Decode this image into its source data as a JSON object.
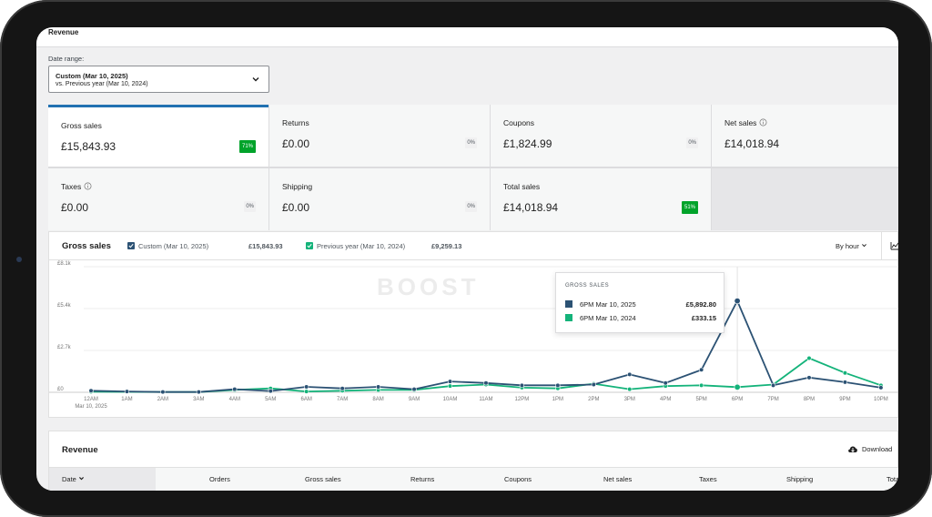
{
  "header": {
    "title": "Revenue"
  },
  "date_range": {
    "label": "Date range:",
    "primary": "Custom (Mar 10, 2025)",
    "secondary": "vs. Previous year (Mar 10, 2024)"
  },
  "tiles": [
    {
      "label": "Gross sales",
      "value": "£15,843.93",
      "delta": "71%",
      "trend": "up",
      "info": false
    },
    {
      "label": "Returns",
      "value": "£0.00",
      "delta": "0%",
      "trend": "flat",
      "info": false
    },
    {
      "label": "Coupons",
      "value": "£1,824.99",
      "delta": "0%",
      "trend": "flat",
      "info": false
    },
    {
      "label": "Net sales",
      "value": "£14,018.94",
      "delta": "",
      "trend": "none",
      "info": true
    },
    {
      "label": "Taxes",
      "value": "£0.00",
      "delta": "0%",
      "trend": "flat",
      "info": true
    },
    {
      "label": "Shipping",
      "value": "£0.00",
      "delta": "0%",
      "trend": "flat",
      "info": false
    },
    {
      "label": "Total sales",
      "value": "£14,018.94",
      "delta": "51%",
      "trend": "up",
      "info": false
    }
  ],
  "chart": {
    "title": "Gross sales",
    "legend": [
      {
        "label": "Custom (Mar 10, 2025)",
        "total": "£15,843.93",
        "color": "#2c5274"
      },
      {
        "label": "Previous year (Mar 10, 2024)",
        "total": "£9,259.13",
        "color": "#14b37a"
      }
    ],
    "interval": "By hour",
    "watermark": "BOOST",
    "tooltip": {
      "title": "Gross sales",
      "rows": [
        {
          "label": "6PM Mar 10, 2025",
          "value": "£5,892.80",
          "color": "#2c5274"
        },
        {
          "label": "6PM Mar 10, 2024",
          "value": "£333.15",
          "color": "#14b37a"
        }
      ]
    }
  },
  "chart_data": {
    "type": "line",
    "x": [
      "12AM",
      "1AM",
      "2AM",
      "3AM",
      "4AM",
      "5AM",
      "6AM",
      "7AM",
      "8AM",
      "9AM",
      "10AM",
      "11AM",
      "12PM",
      "1PM",
      "2PM",
      "3PM",
      "4PM",
      "5PM",
      "6PM",
      "7PM",
      "8PM",
      "9PM",
      "10PM"
    ],
    "x_sublabel": "Mar 10, 2025",
    "yticks": [
      "£0",
      "£2.7k",
      "£5.4k",
      "£8.1k"
    ],
    "ylim": [
      0,
      8100
    ],
    "series": [
      {
        "name": "Custom (Mar 10, 2025)",
        "color": "#2c5274",
        "values": [
          100,
          50,
          20,
          20,
          200,
          80,
          350,
          250,
          350,
          200,
          700,
          600,
          450,
          450,
          500,
          1150,
          600,
          1450,
          5892.8,
          450,
          950,
          650,
          300
        ]
      },
      {
        "name": "Previous year (Mar 10, 2024)",
        "color": "#14b37a",
        "values": [
          40,
          30,
          20,
          20,
          150,
          250,
          50,
          100,
          150,
          150,
          400,
          500,
          300,
          250,
          550,
          200,
          400,
          450,
          333.15,
          500,
          2200,
          1250,
          450
        ]
      }
    ],
    "grid": true,
    "legend": "top"
  },
  "revenue_table": {
    "title": "Revenue",
    "download_label": "Download",
    "columns": [
      "Date",
      "Orders",
      "Gross sales",
      "Returns",
      "Coupons",
      "Net sales",
      "Taxes",
      "Shipping",
      "Tota"
    ]
  }
}
